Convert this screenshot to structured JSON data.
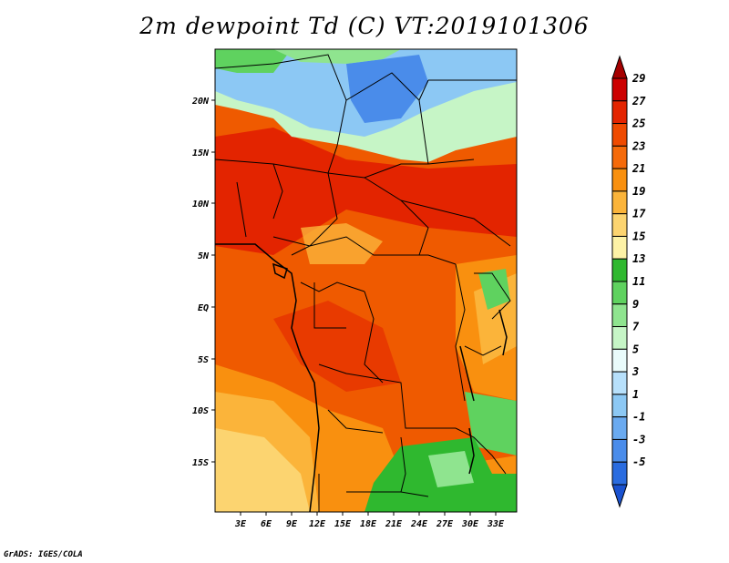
{
  "title": "2m dewpoint Td (C) VT:2019101306",
  "credit": "GrADS: IGES/COLA",
  "map": {
    "lon_labels": [
      "3E",
      "6E",
      "9E",
      "12E",
      "15E",
      "18E",
      "21E",
      "24E",
      "27E",
      "30E",
      "33E"
    ],
    "lat_labels": [
      "20N",
      "15N",
      "10N",
      "5N",
      "EQ",
      "5S",
      "10S",
      "15S"
    ],
    "lon_range": [
      1,
      35
    ],
    "lat_range": [
      -20,
      25
    ]
  },
  "colorbar": {
    "labels": [
      "29",
      "27",
      "25",
      "23",
      "21",
      "19",
      "17",
      "15",
      "13",
      "11",
      "9",
      "7",
      "5",
      "3",
      "1",
      "-1",
      "-3",
      "-5"
    ],
    "colors": [
      "#a50000",
      "#cc0000",
      "#e32400",
      "#ef4a00",
      "#f56a0a",
      "#f9900f",
      "#fbb43a",
      "#fcd470",
      "#fdf2a6",
      "#2fb82f",
      "#5fd25f",
      "#8fe48f",
      "#c6f5c6",
      "#e9fbfb",
      "#b7e0fb",
      "#8cc8f4",
      "#6aaaf0",
      "#4a8cea",
      "#2a6ce0",
      "#1a52d0"
    ]
  },
  "legend_colors": {
    "sahara_dry": "#4a8cea",
    "sahel_moist": "#ef4a00",
    "south_dry": "#fcd470",
    "green_zone": "#5fd25f"
  }
}
